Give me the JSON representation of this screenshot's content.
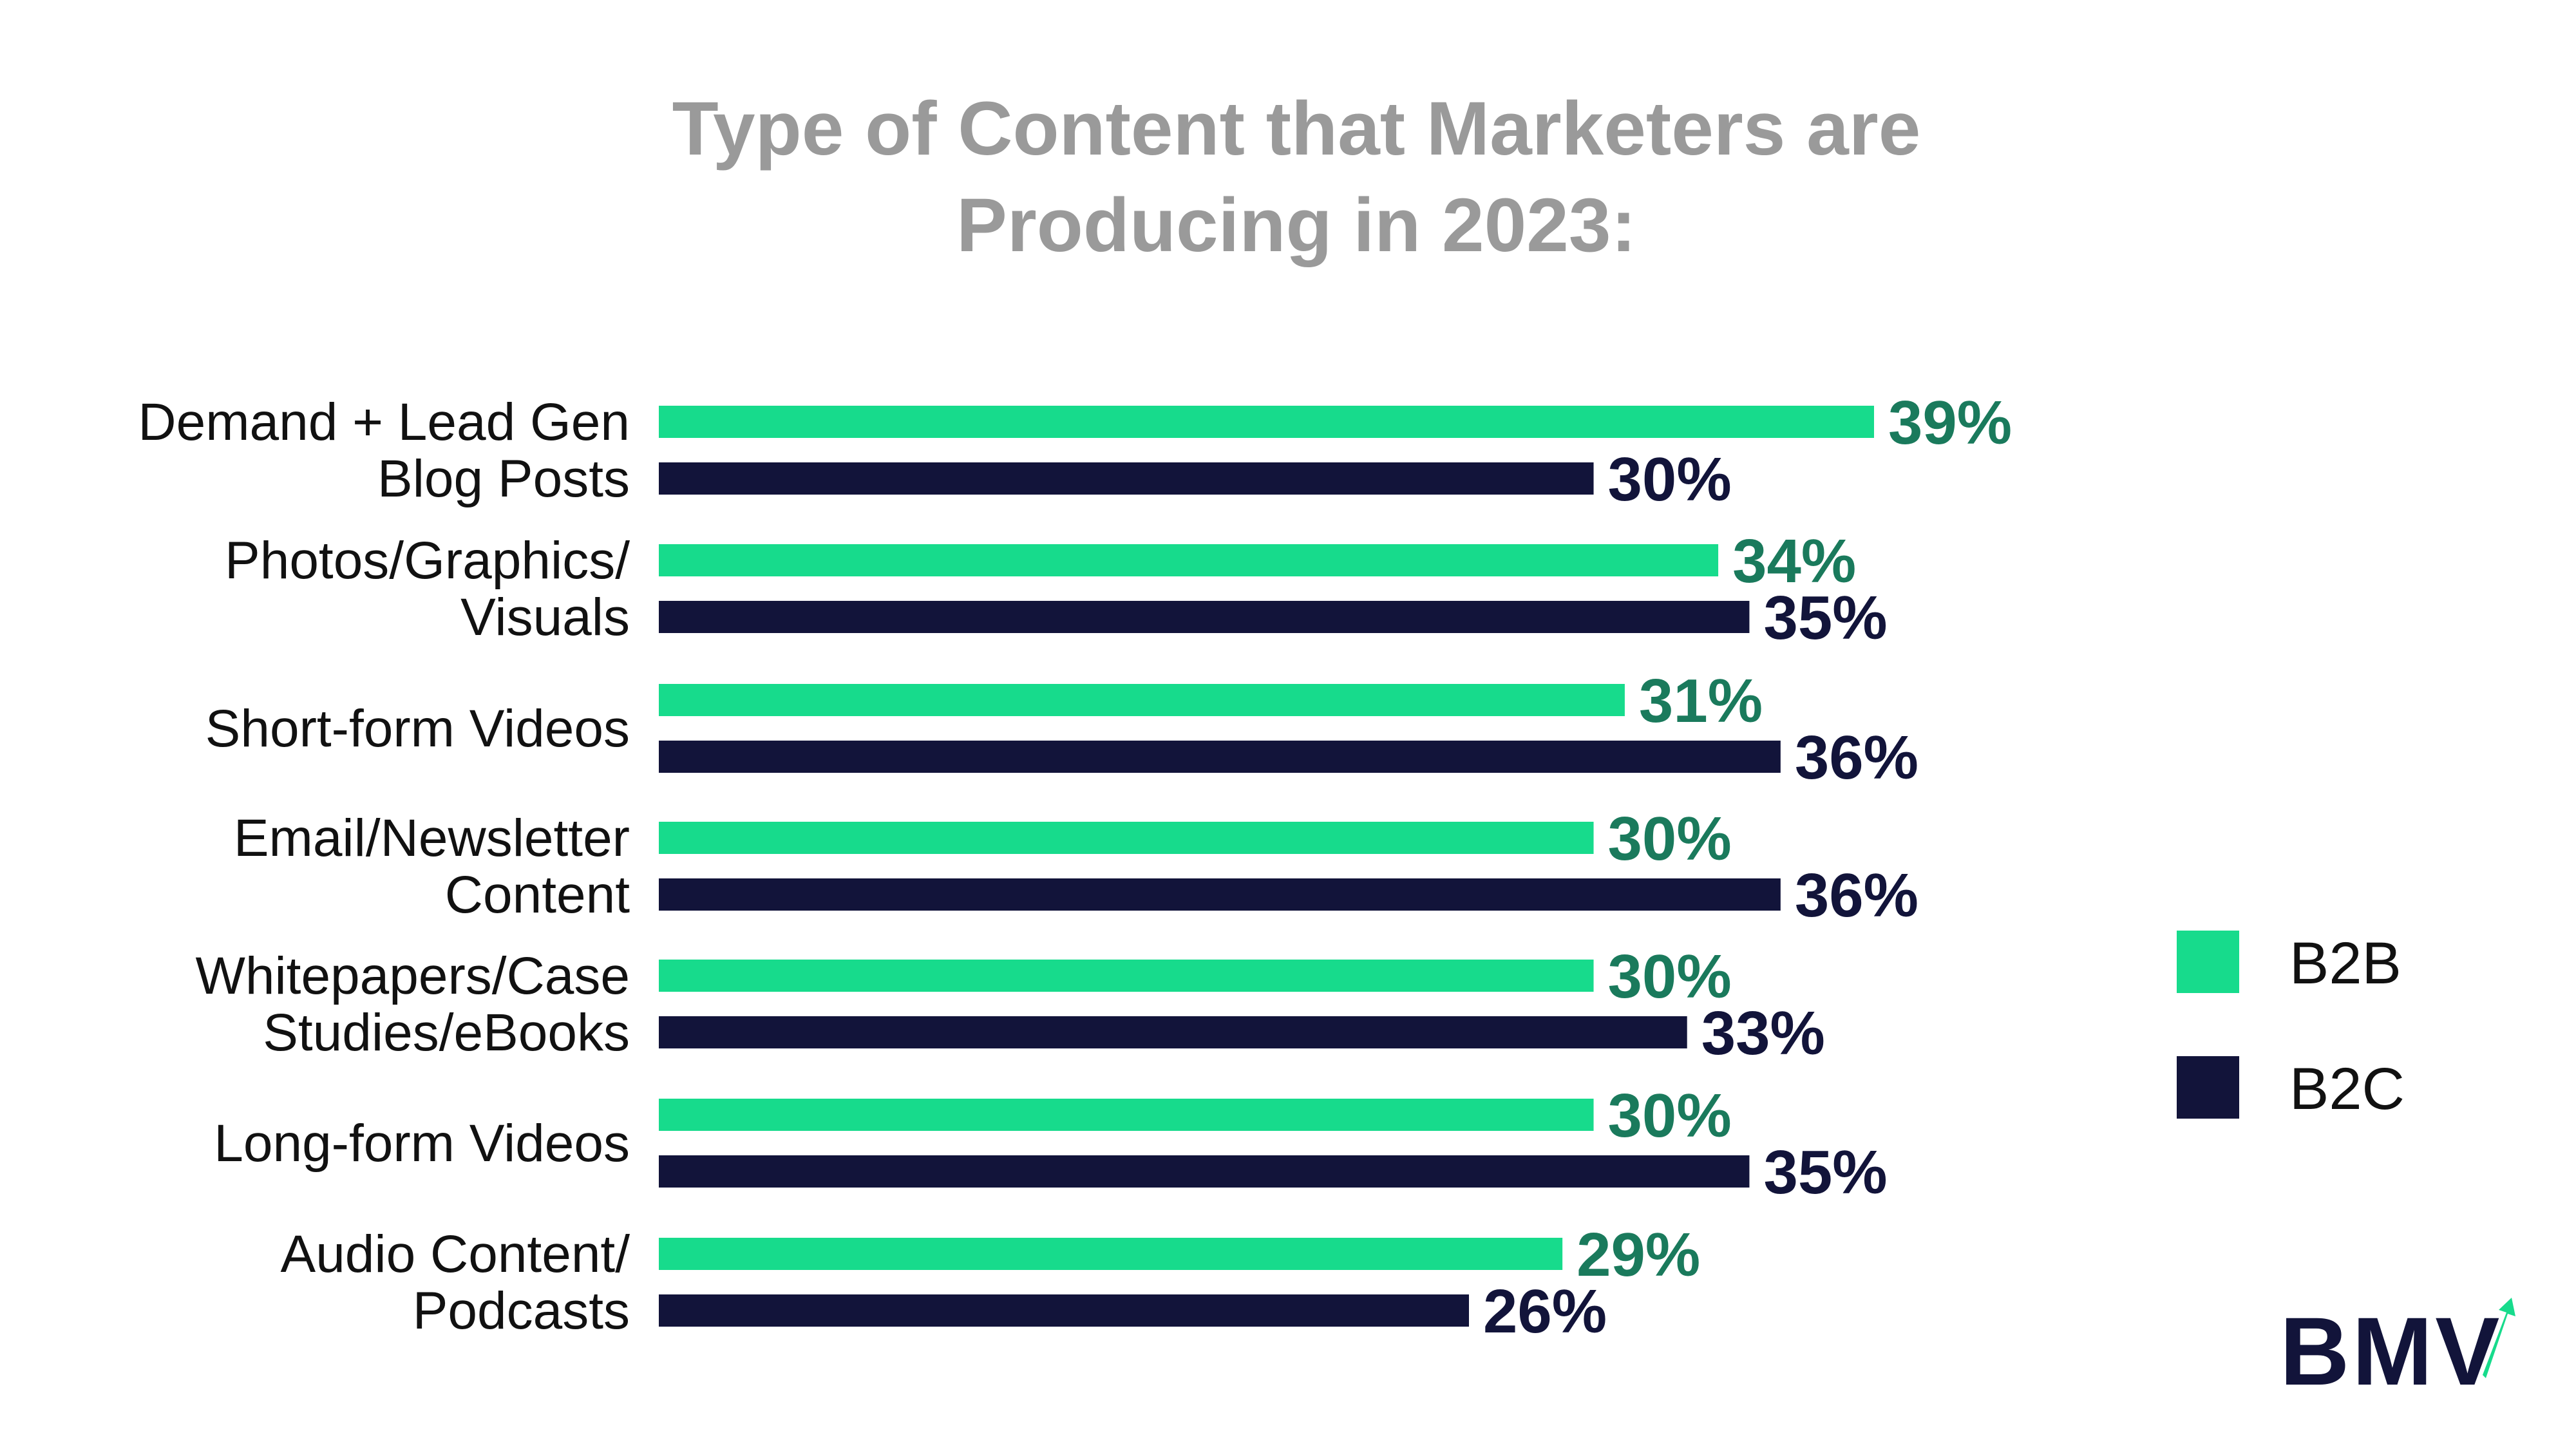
{
  "chart_data": {
    "type": "bar",
    "orientation": "horizontal",
    "title": [
      "Type of Content that Marketers are",
      "Producing in 2023:"
    ],
    "categories": [
      [
        "Demand + Lead Gen",
        "Blog Posts"
      ],
      [
        "Photos/Graphics/",
        "Visuals"
      ],
      [
        "Short-form Videos"
      ],
      [
        "Email/Newsletter",
        "Content"
      ],
      [
        "Whitepapers/Case",
        "Studies/eBooks"
      ],
      [
        "Long-form Videos"
      ],
      [
        "Audio Content/",
        "Podcasts"
      ]
    ],
    "series": [
      {
        "name": "B2B",
        "color": "#17db8c",
        "label_color": "#1a7a5c",
        "values": [
          39,
          34,
          31,
          30,
          30,
          30,
          29
        ]
      },
      {
        "name": "B2C",
        "color": "#12143a",
        "label_color": "#12143a",
        "values": [
          30,
          35,
          36,
          36,
          33,
          35,
          26
        ]
      }
    ],
    "value_suffix": "%",
    "xlim": [
      0,
      39
    ],
    "legend_position": "right",
    "grid": false
  },
  "logo": {
    "text": "BMV",
    "accent_color": "#17db8c"
  }
}
